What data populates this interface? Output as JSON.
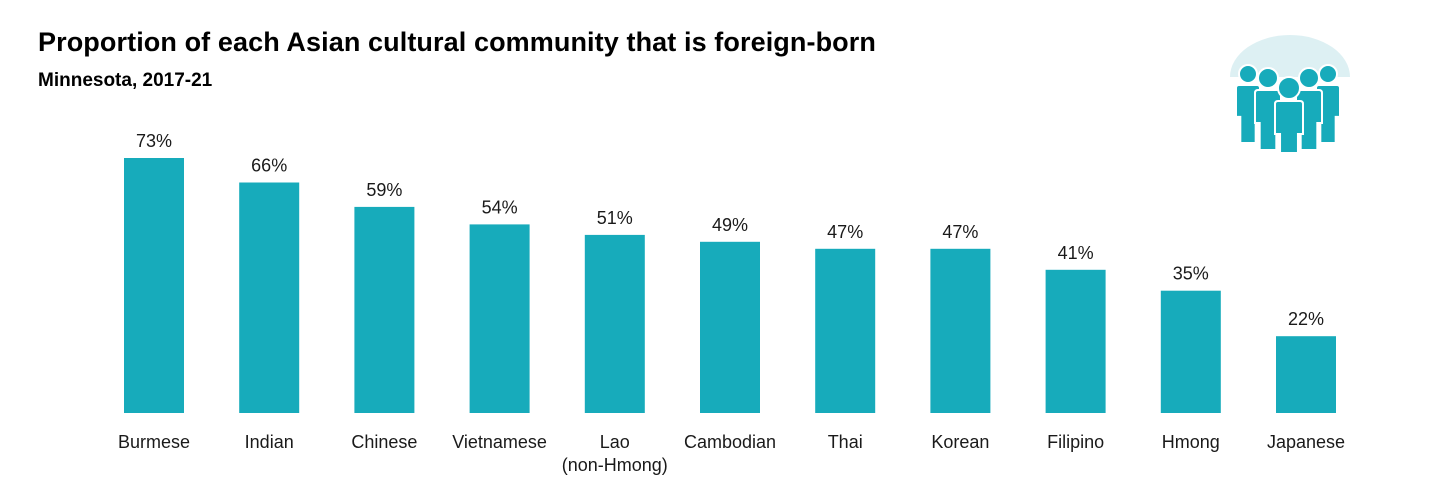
{
  "colors": {
    "bar": "#17abbb",
    "icon_bg": "#ddf0f3",
    "icon_fg": "#17abbb",
    "text": "#1a1a1a"
  },
  "icon": "people-group-icon",
  "chart_data": {
    "type": "bar",
    "title": "Proportion of each Asian cultural community that is foreign-born",
    "subtitle": "Minnesota, 2017-21",
    "xlabel": "",
    "ylabel": "",
    "ylim": [
      0,
      100
    ],
    "grid": false,
    "legend": "none",
    "categories": [
      [
        "Burmese"
      ],
      [
        "Indian"
      ],
      [
        "Chinese"
      ],
      [
        "Vietnamese"
      ],
      [
        "Lao",
        "(non-Hmong)"
      ],
      [
        "Cambodian"
      ],
      [
        "Thai"
      ],
      [
        "Korean"
      ],
      [
        "Filipino"
      ],
      [
        "Hmong"
      ],
      [
        "Japanese"
      ]
    ],
    "values": [
      73,
      66,
      59,
      54,
      51,
      49,
      47,
      47,
      41,
      35,
      22
    ],
    "data_labels": [
      "73%",
      "66%",
      "59%",
      "54%",
      "51%",
      "49%",
      "47%",
      "47%",
      "41%",
      "35%",
      "22%"
    ]
  }
}
